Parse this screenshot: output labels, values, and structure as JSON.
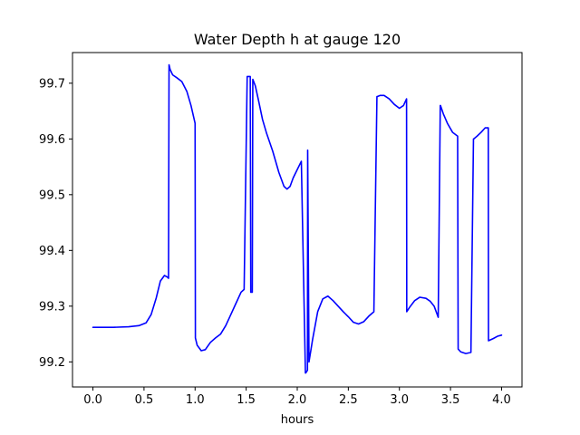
{
  "chart_data": {
    "type": "line",
    "title": "Water Depth h at gauge 120",
    "xlabel": "hours",
    "ylabel": "",
    "xlim": [
      -0.2,
      4.2
    ],
    "ylim": [
      99.155,
      99.755
    ],
    "xticks": [
      0.0,
      0.5,
      1.0,
      1.5,
      2.0,
      2.5,
      3.0,
      3.5,
      4.0
    ],
    "xtick_labels": [
      "0.0",
      "0.5",
      "1.0",
      "1.5",
      "2.0",
      "2.5",
      "3.0",
      "3.5",
      "4.0"
    ],
    "yticks": [
      99.2,
      99.3,
      99.4,
      99.5,
      99.6,
      99.7
    ],
    "ytick_labels": [
      "99.2",
      "99.3",
      "99.4",
      "99.5",
      "99.6",
      "99.7"
    ],
    "grid": false,
    "series": [
      {
        "color": "#0000ff",
        "x": [
          0.0,
          0.2,
          0.35,
          0.45,
          0.52,
          0.57,
          0.62,
          0.66,
          0.7,
          0.73,
          0.74,
          0.745,
          0.755,
          0.78,
          0.82,
          0.87,
          0.92,
          0.96,
          1.0,
          1.003,
          1.02,
          1.06,
          1.1,
          1.15,
          1.2,
          1.25,
          1.3,
          1.35,
          1.4,
          1.45,
          1.48,
          1.51,
          1.512,
          1.54,
          1.545,
          1.56,
          1.565,
          1.59,
          1.62,
          1.66,
          1.7,
          1.76,
          1.82,
          1.87,
          1.9,
          1.93,
          1.96,
          2.0,
          2.04,
          2.08,
          2.083,
          2.1,
          2.102,
          2.115,
          2.15,
          2.2,
          2.25,
          2.3,
          2.35,
          2.4,
          2.45,
          2.5,
          2.55,
          2.6,
          2.65,
          2.7,
          2.75,
          2.78,
          2.782,
          2.81,
          2.85,
          2.9,
          2.95,
          3.0,
          3.04,
          3.07,
          3.072,
          3.1,
          3.15,
          3.2,
          3.26,
          3.3,
          3.34,
          3.38,
          3.4,
          3.402,
          3.43,
          3.47,
          3.52,
          3.57,
          3.575,
          3.6,
          3.65,
          3.7,
          3.725,
          3.727,
          3.76,
          3.8,
          3.84,
          3.87,
          3.872,
          3.92,
          3.96,
          4.0
        ],
        "y": [
          99.262,
          99.262,
          99.263,
          99.265,
          99.27,
          99.285,
          99.315,
          99.345,
          99.355,
          99.352,
          99.35,
          99.733,
          99.725,
          99.715,
          99.71,
          99.703,
          99.685,
          99.66,
          99.628,
          99.243,
          99.23,
          99.22,
          99.222,
          99.235,
          99.243,
          99.25,
          99.265,
          99.285,
          99.305,
          99.325,
          99.33,
          99.712,
          99.712,
          99.712,
          99.325,
          99.325,
          99.707,
          99.695,
          99.67,
          99.635,
          99.61,
          99.578,
          99.54,
          99.515,
          99.51,
          99.515,
          99.53,
          99.545,
          99.56,
          99.18,
          99.18,
          99.185,
          99.58,
          99.2,
          99.24,
          99.29,
          99.313,
          99.318,
          99.31,
          99.3,
          99.29,
          99.281,
          99.271,
          99.268,
          99.272,
          99.282,
          99.29,
          99.676,
          99.676,
          99.678,
          99.678,
          99.672,
          99.662,
          99.655,
          99.66,
          99.672,
          99.29,
          99.298,
          99.31,
          99.316,
          99.314,
          99.309,
          99.3,
          99.28,
          99.66,
          99.66,
          99.645,
          99.628,
          99.612,
          99.605,
          99.223,
          99.218,
          99.215,
          99.217,
          99.6,
          99.6,
          99.605,
          99.612,
          99.62,
          99.62,
          99.238,
          99.242,
          99.246,
          99.248
        ]
      }
    ]
  }
}
